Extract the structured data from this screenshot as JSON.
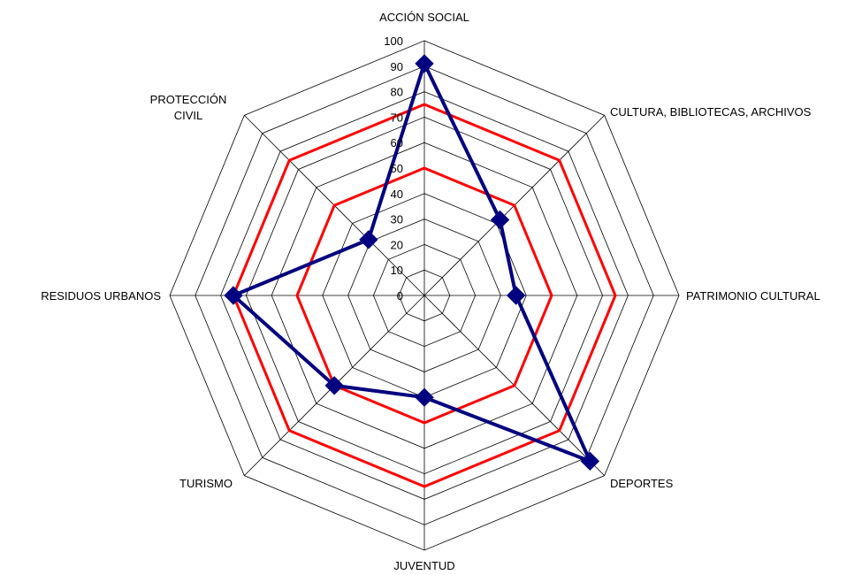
{
  "chart_data": {
    "type": "radar",
    "categories": [
      [
        "ACCIÓN SOCIAL"
      ],
      [
        "CULTURA, BIBLIOTECAS, ARCHIVOS"
      ],
      [
        "PATRIMONIO CULTURAL"
      ],
      [
        "DEPORTES"
      ],
      [
        "JUVENTUD"
      ],
      [
        "TURISMO"
      ],
      [
        "RESIDUOS URBANOS"
      ],
      [
        "PROTECCIÓN",
        "CIVIL"
      ]
    ],
    "ylim": [
      0,
      100
    ],
    "ticks": [
      0,
      10,
      20,
      30,
      40,
      50,
      60,
      70,
      80,
      90,
      100
    ],
    "tick_labels": [
      "0",
      "10",
      "20",
      "30",
      "40",
      "50",
      "60",
      "70",
      "80",
      "90",
      "100"
    ],
    "grid": true,
    "series": [
      {
        "values": [
          50,
          50,
          50,
          50,
          50,
          50,
          50,
          50
        ],
        "color": "#ff0000",
        "marker": "none"
      },
      {
        "values": [
          75,
          75,
          75,
          75,
          75,
          75,
          75,
          75
        ],
        "color": "#ff0000",
        "marker": "none"
      },
      {
        "values": [
          91,
          42,
          36,
          92,
          40,
          50,
          75,
          31
        ],
        "color": "#000080",
        "marker": "diamond"
      }
    ]
  }
}
